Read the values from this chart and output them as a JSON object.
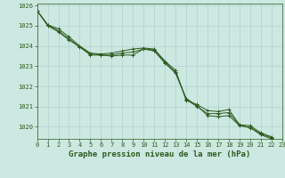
{
  "title": "Graphe pression niveau de la mer (hPa)",
  "background_color": "#cce8e0",
  "grid_color": "#aacccc",
  "line_color": "#2d5a1e",
  "series": [
    [
      1025.75,
      1025.05,
      1024.85,
      1024.45,
      1024.0,
      1023.65,
      1023.6,
      1023.65,
      1023.75,
      1023.85,
      1023.9,
      1023.85,
      1023.25,
      1022.8,
      1021.3,
      1021.1,
      1020.8,
      1020.75,
      1020.85,
      1020.1,
      1020.05,
      1019.7,
      1019.5
    ],
    [
      1025.75,
      1025.0,
      1024.7,
      1024.3,
      1023.95,
      1023.55,
      1023.55,
      1023.5,
      1023.55,
      1023.55,
      1023.85,
      1023.75,
      1023.15,
      1022.65,
      1021.4,
      1021.05,
      1020.55,
      1020.5,
      1020.55,
      1020.05,
      1019.95,
      1019.6,
      1019.4
    ],
    [
      1025.75,
      1025.05,
      1024.75,
      1024.35,
      1023.95,
      1023.6,
      1023.55,
      1023.55,
      1023.65,
      1023.7,
      1023.85,
      1023.8,
      1023.2,
      1022.7,
      1021.35,
      1021.0,
      1020.65,
      1020.65,
      1020.7,
      1020.07,
      1019.97,
      1019.65,
      1019.45
    ]
  ],
  "xlim": [
    0,
    23
  ],
  "ylim": [
    1019.4,
    1026.1
  ],
  "xticks": [
    0,
    1,
    2,
    3,
    4,
    5,
    6,
    7,
    8,
    9,
    10,
    11,
    12,
    13,
    14,
    15,
    16,
    17,
    18,
    19,
    20,
    21,
    22,
    23
  ],
  "yticks": [
    1020,
    1021,
    1022,
    1023,
    1024,
    1025,
    1026
  ],
  "title_fontsize": 6.5,
  "tick_fontsize": 5.0,
  "marker": "+",
  "markersize": 3.5,
  "linewidth": 0.7,
  "figsize": [
    3.2,
    2.0
  ],
  "dpi": 100
}
